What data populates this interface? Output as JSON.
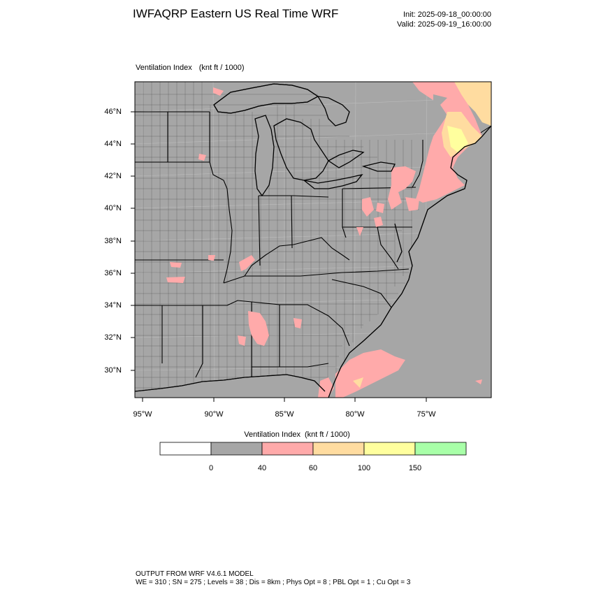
{
  "header": {
    "title": "IWFAQRP Eastern US Real Time WRF",
    "init": "Init: 2025-09-18_00:00:00",
    "valid": "Valid: 2025-09-19_16:00:00"
  },
  "map": {
    "field_name": "Ventilation Index",
    "units": "(knt ft / 1000)",
    "lat_labels": [
      "46°N",
      "44°N",
      "42°N",
      "40°N",
      "38°N",
      "36°N",
      "34°N",
      "32°N",
      "30°N"
    ],
    "lon_labels": [
      "95°W",
      "90°W",
      "85°W",
      "80°W",
      "75°W"
    ],
    "colors": {
      "land": "#a6a6a6",
      "low": "#ffaaaa",
      "mid": "#ffdca0",
      "high": "#ffff9e",
      "top": "#a8ffa8"
    }
  },
  "colorbar": {
    "title": "Ventilation Index",
    "units": "(knt ft / 1000)",
    "colors": [
      "#ffffff",
      "#a6a6a6",
      "#ffaaaa",
      "#ffdca0",
      "#ffff9e",
      "#a8ffa8"
    ],
    "ticks": [
      "0",
      "40",
      "60",
      "100",
      "150"
    ]
  },
  "footer": {
    "line1": "OUTPUT FROM WRF V4.6.1 MODEL",
    "line2": "WE = 310 ; SN = 275 ; Levels = 38 ; Dis = 8km ; Phys Opt = 8 ; PBL Opt = 1 ; Cu Opt = 3"
  }
}
